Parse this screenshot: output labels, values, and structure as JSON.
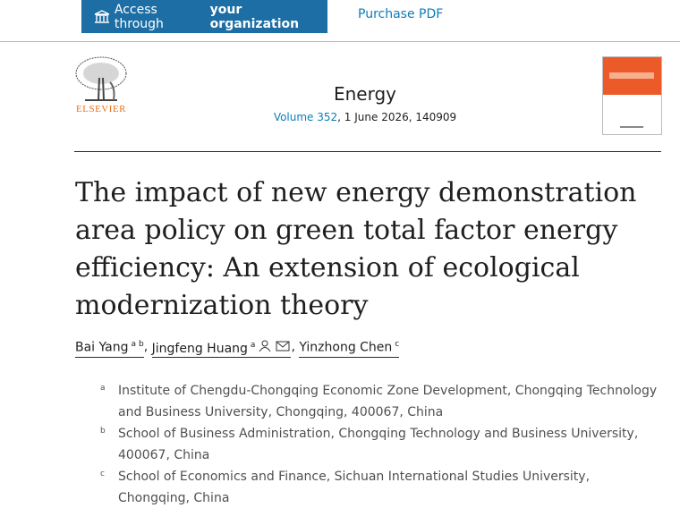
{
  "toolbar": {
    "access_prefix": "Access through",
    "access_bold": "your organization",
    "purchase": "Purchase PDF"
  },
  "journal": {
    "publisher": "ELSEVIER",
    "name": "Energy",
    "volume": "Volume 352",
    "details": ", 1 June 2026, 140909"
  },
  "title": "The impact of new energy demonstration area policy on green total factor energy efficiency: An extension of ecological modernization theory",
  "authors": [
    {
      "name": "Bai Yang",
      "sups": [
        "a",
        "b"
      ]
    },
    {
      "name": "Jingfeng Huang",
      "sups": [
        "a"
      ]
    },
    {
      "name": "Yinzhong Chen",
      "sups": [
        "c"
      ]
    }
  ],
  "affiliations": [
    {
      "label": "a",
      "text": "Institute of Chengdu-Chongqing Economic Zone Development, Chongqing Technology and Business University, Chongqing, 400067, China"
    },
    {
      "label": "b",
      "text": "School of Business Administration, Chongqing Technology and Business University, 400067, China"
    },
    {
      "label": "c",
      "text": "School of Economics and Finance, Sichuan International Studies University, Chongqing, China"
    }
  ]
}
